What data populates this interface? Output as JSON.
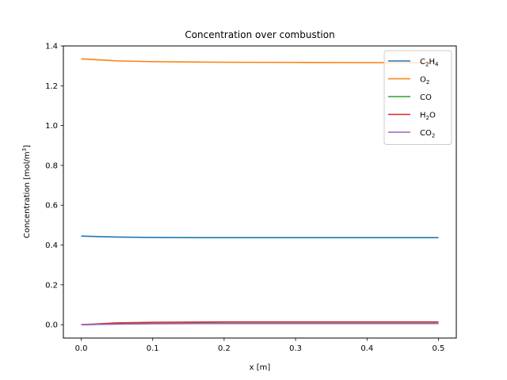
{
  "chart_data": {
    "type": "line",
    "title": "Concentration over combustion",
    "xlabel": "x [m]",
    "ylabel_text": "Concentration [mol/m",
    "ylabel_sup": "3",
    "ylabel_close": "]",
    "xlim": [
      -0.025,
      0.525
    ],
    "ylim": [
      -0.067,
      1.4
    ],
    "xticks": [
      0.0,
      0.1,
      0.2,
      0.3,
      0.4,
      0.5
    ],
    "xtick_labels": [
      "0.0",
      "0.1",
      "0.2",
      "0.3",
      "0.4",
      "0.5"
    ],
    "yticks": [
      0.0,
      0.2,
      0.4,
      0.6,
      0.8,
      1.0,
      1.2,
      1.4
    ],
    "ytick_labels": [
      "0.0",
      "0.2",
      "0.4",
      "0.6",
      "0.8",
      "1.0",
      "1.2",
      "1.4"
    ],
    "grid": false,
    "legend_position": "top-right",
    "x": [
      0.0,
      0.05,
      0.1,
      0.2,
      0.3,
      0.4,
      0.5
    ],
    "series": [
      {
        "name_parts": [
          [
            "C",
            ""
          ],
          [
            "2",
            "sub"
          ],
          [
            "H",
            ""
          ],
          [
            "4",
            "sub"
          ]
        ],
        "color": "#1f77b4",
        "values": [
          0.445,
          0.44,
          0.438,
          0.437,
          0.437,
          0.437,
          0.437
        ]
      },
      {
        "name_parts": [
          [
            "O",
            ""
          ],
          [
            "2",
            "sub"
          ]
        ],
        "color": "#ff7f0e",
        "values": [
          1.335,
          1.325,
          1.321,
          1.318,
          1.317,
          1.316,
          1.315
        ]
      },
      {
        "name_parts": [
          [
            "CO",
            ""
          ]
        ],
        "color": "#2ca02c",
        "values": [
          0.0,
          0.004,
          0.006,
          0.007,
          0.007,
          0.007,
          0.007
        ]
      },
      {
        "name_parts": [
          [
            "H",
            ""
          ],
          [
            "2",
            "sub"
          ],
          [
            "O",
            ""
          ]
        ],
        "color": "#d62728",
        "values": [
          0.0,
          0.009,
          0.012,
          0.014,
          0.014,
          0.014,
          0.014
        ]
      },
      {
        "name_parts": [
          [
            "CO",
            ""
          ],
          [
            "2",
            "sub"
          ]
        ],
        "color": "#9467bd",
        "values": [
          0.0,
          0.003,
          0.005,
          0.006,
          0.006,
          0.006,
          0.006
        ]
      }
    ]
  }
}
